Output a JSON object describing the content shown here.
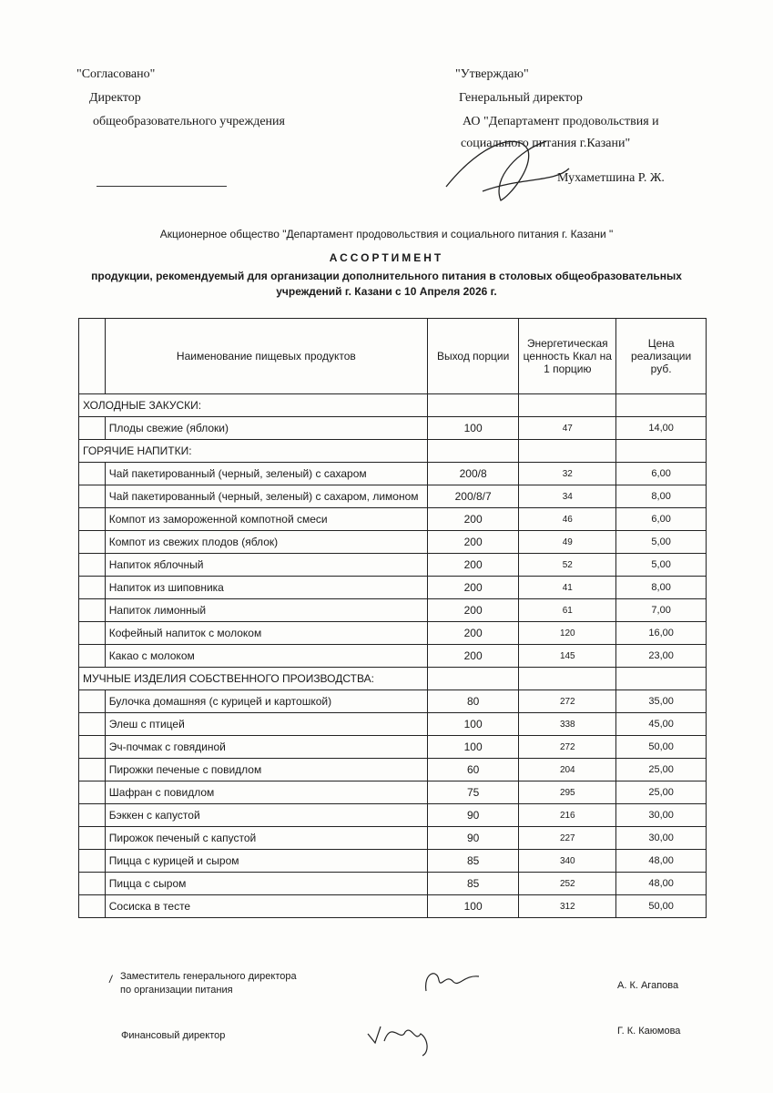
{
  "approval": {
    "agreed": "\"Согласовано\"",
    "agreed_role": "Директор",
    "agreed_org": "общеобразовательного учреждения",
    "approved": "\"Утверждаю\"",
    "approved_role": "Генеральный директор",
    "approved_org1": "АО \"Департамент продовольствия и",
    "approved_org2": "социального питания г.Казани\"",
    "approved_name": "Мухаметшина Р. Ж."
  },
  "org_title": "Акционерное общество \"Департамент продовольствия и социального питания г. Казани \"",
  "doc_title": "АССОРТИМЕНТ",
  "subtitle1": "продукции, рекомендуемый для организации дополнительного питания в столовых общеобразовательных",
  "subtitle2": "учреждений г. Казани с 10 Апреля 2026 г.",
  "table": {
    "headers": [
      "Наименование пищевых продуктов",
      "Выход порции",
      "Энергетическая ценность Ккал на 1 порцию",
      "Цена реализации руб."
    ],
    "sections": [
      {
        "title": "ХОЛОДНЫЕ ЗАКУСКИ:",
        "rows": [
          [
            "Плоды свежие (яблоки)",
            "100",
            "47",
            "14,00"
          ]
        ]
      },
      {
        "title": "ГОРЯЧИЕ НАПИТКИ:",
        "rows": [
          [
            "Чай пакетированный (черный, зеленый) с сахаром",
            "200/8",
            "32",
            "6,00"
          ],
          [
            "Чай пакетированный (черный, зеленый) с сахаром, лимоном",
            "200/8/7",
            "34",
            "8,00"
          ],
          [
            "Компот из замороженной компотной смеси",
            "200",
            "46",
            "6,00"
          ],
          [
            "Компот из свежих плодов (яблок)",
            "200",
            "49",
            "5,00"
          ],
          [
            "Напиток яблочный",
            "200",
            "52",
            "5,00"
          ],
          [
            "Напиток из шиповника",
            "200",
            "41",
            "8,00"
          ],
          [
            "Напиток лимонный",
            "200",
            "61",
            "7,00"
          ],
          [
            "Кофейный напиток с молоком",
            "200",
            "120",
            "16,00"
          ],
          [
            "Какао с молоком",
            "200",
            "145",
            "23,00"
          ]
        ]
      },
      {
        "title": "МУЧНЫЕ ИЗДЕЛИЯ СОБСТВЕННОГО ПРОИЗВОДСТВА:",
        "rows": [
          [
            "Булочка домашняя (с курицей и картошкой)",
            "80",
            "272",
            "35,00"
          ],
          [
            "Элеш с птицей",
            "100",
            "338",
            "45,00"
          ],
          [
            "Эч-почмак с говядиной",
            "100",
            "272",
            "50,00"
          ],
          [
            "Пирожки печеные с повидлом",
            "60",
            "204",
            "25,00"
          ],
          [
            "Шафран с повидлом",
            "75",
            "295",
            "25,00"
          ],
          [
            "Бэккен с капустой",
            "90",
            "216",
            "30,00"
          ],
          [
            "Пирожок печеный с капустой",
            "90",
            "227",
            "30,00"
          ],
          [
            "Пицца с курицей и сыром",
            "85",
            "340",
            "48,00"
          ],
          [
            "Пицца с сыром",
            "85",
            "252",
            "48,00"
          ],
          [
            "Сосиска в тесте",
            "100",
            "312",
            "50,00"
          ]
        ]
      }
    ]
  },
  "signatures": {
    "deputy_role1": "Заместитель генерального директора",
    "deputy_role2": "по организации питания",
    "deputy_name": "А. К. Агапова",
    "fin_role": "Финансовый директор",
    "fin_name": "Г. К. Каюмова"
  }
}
